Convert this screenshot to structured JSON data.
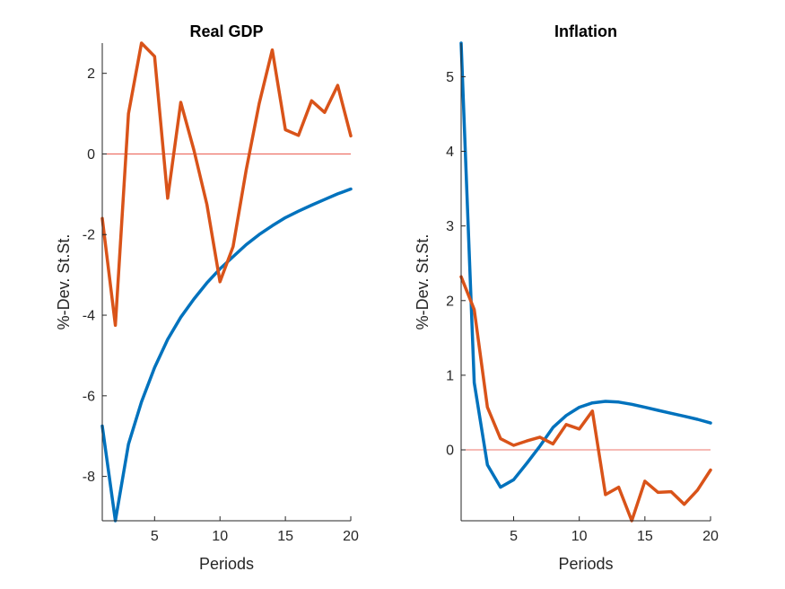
{
  "chart_data": [
    {
      "type": "line",
      "title": "Real GDP",
      "xlabel": "Periods",
      "ylabel": "%-Dev. St.St.",
      "xlim": [
        1,
        20
      ],
      "ylim": [
        -9.1,
        2.75
      ],
      "xticks": [
        5,
        10,
        15,
        20
      ],
      "yticks": [
        -8,
        -6,
        -4,
        -2,
        0,
        2
      ],
      "x": [
        1,
        2,
        3,
        4,
        5,
        6,
        7,
        8,
        9,
        10,
        11,
        12,
        13,
        14,
        15,
        16,
        17,
        18,
        19,
        20
      ],
      "zero_line_color": "#e8463a",
      "series": [
        {
          "color": "#0072bd",
          "values": [
            -6.75,
            -9.1,
            -7.2,
            -6.15,
            -5.3,
            -4.6,
            -4.05,
            -3.6,
            -3.2,
            -2.85,
            -2.55,
            -2.25,
            -2.0,
            -1.78,
            -1.58,
            -1.42,
            -1.27,
            -1.13,
            -0.99,
            -0.87
          ]
        },
        {
          "color": "#d95319",
          "values": [
            -1.6,
            -4.25,
            1.0,
            2.75,
            2.42,
            -1.1,
            1.28,
            0.1,
            -1.25,
            -3.17,
            -2.3,
            -0.4,
            1.25,
            2.58,
            0.6,
            0.46,
            1.32,
            1.03,
            1.7,
            0.45
          ]
        }
      ]
    },
    {
      "type": "line",
      "title": "Inflation",
      "xlabel": "Periods",
      "ylabel": "%-Dev. St.St.",
      "xlim": [
        1,
        20
      ],
      "ylim": [
        -0.95,
        5.45
      ],
      "xticks": [
        5,
        10,
        15,
        20
      ],
      "yticks": [
        0,
        1,
        2,
        3,
        4,
        5
      ],
      "x": [
        1,
        2,
        3,
        4,
        5,
        6,
        7,
        8,
        9,
        10,
        11,
        12,
        13,
        14,
        15,
        16,
        17,
        18,
        19,
        20
      ],
      "zero_line_color": "#e8463a",
      "series": [
        {
          "color": "#0072bd",
          "values": [
            5.45,
            0.9,
            -0.2,
            -0.5,
            -0.4,
            -0.18,
            0.05,
            0.3,
            0.46,
            0.57,
            0.63,
            0.65,
            0.64,
            0.61,
            0.57,
            0.53,
            0.49,
            0.45,
            0.41,
            0.36
          ]
        },
        {
          "color": "#d95319",
          "values": [
            2.32,
            1.88,
            0.57,
            0.15,
            0.06,
            0.12,
            0.17,
            0.08,
            0.34,
            0.28,
            0.52,
            -0.6,
            -0.5,
            -0.95,
            -0.42,
            -0.57,
            -0.56,
            -0.73,
            -0.54,
            -0.27
          ]
        }
      ]
    }
  ]
}
